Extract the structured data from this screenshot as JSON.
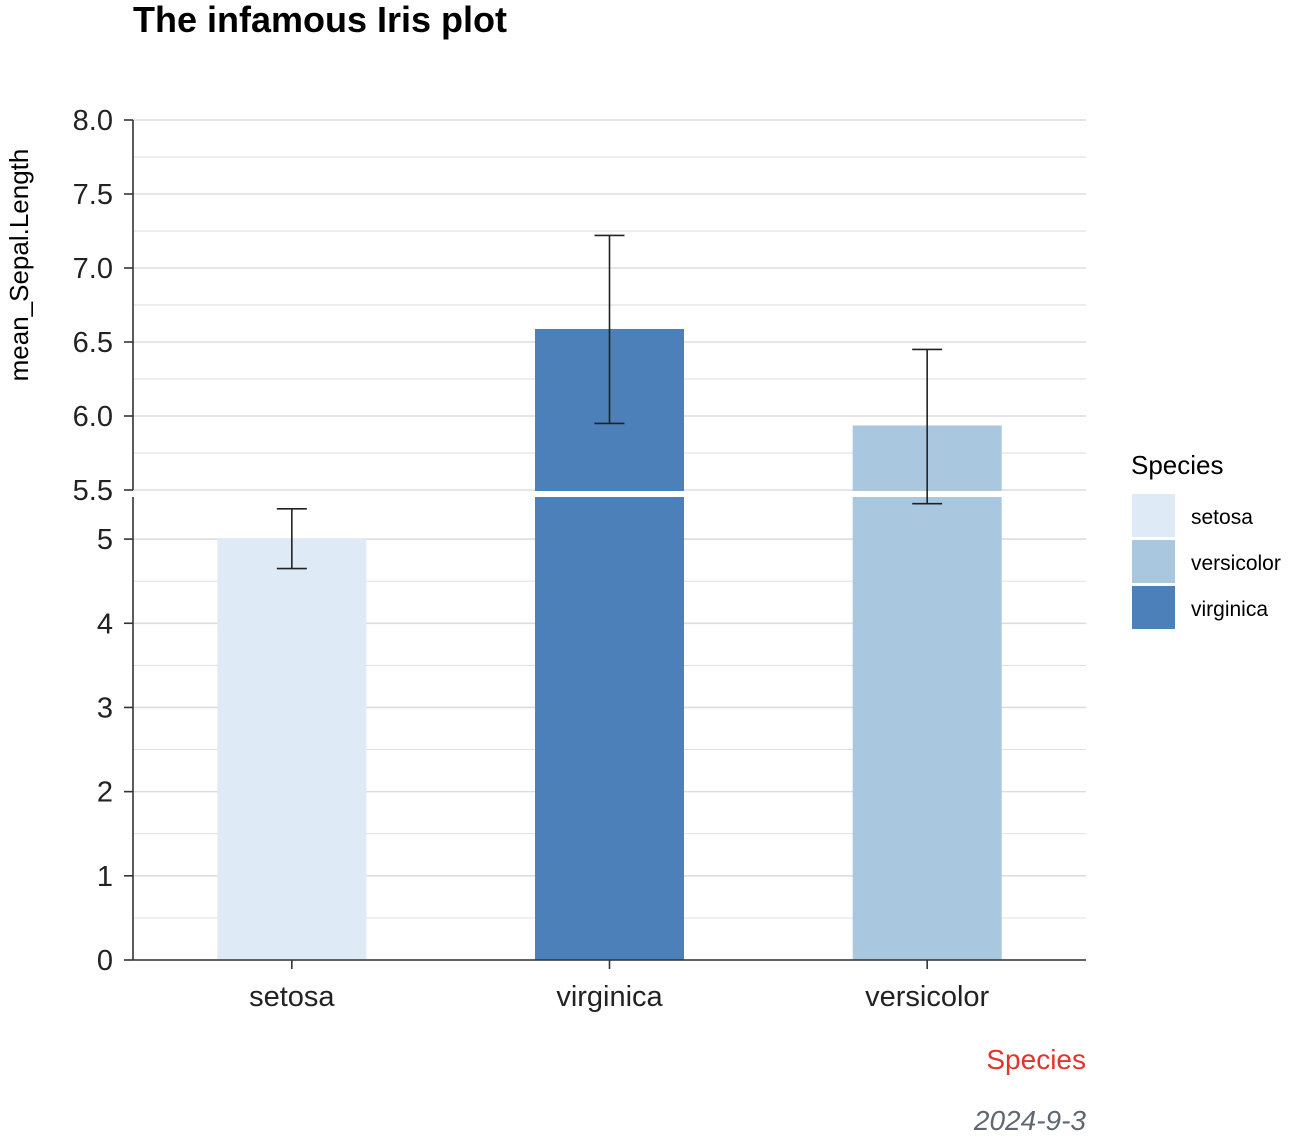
{
  "chart_data": {
    "type": "bar",
    "title": "The infamous Iris plot",
    "xlabel": "Species",
    "ylabel": "mean_Sepal.Length",
    "caption": "2024-9-3",
    "categories": [
      "setosa",
      "virginica",
      "versicolor"
    ],
    "values": [
      5.006,
      6.588,
      5.936
    ],
    "error_low": [
      4.65,
      5.95,
      5.42
    ],
    "error_high": [
      5.36,
      7.22,
      6.45
    ],
    "y_axis_break": {
      "lower_range": [
        0,
        5.5
      ],
      "upper_range": [
        5.5,
        8.0
      ],
      "lower_ticks": [
        "0",
        "1",
        "2",
        "3",
        "4",
        "5"
      ],
      "upper_ticks": [
        "5.5",
        "6.0",
        "6.5",
        "7.0",
        "7.5",
        "8.0"
      ]
    },
    "grid": true,
    "legend": {
      "title": "Species",
      "position": "right",
      "entries": [
        "setosa",
        "versicolor",
        "virginica"
      ]
    },
    "colors": {
      "setosa": "#deebf7",
      "versicolor": "#a9c8e0",
      "virginica": "#4b80b8",
      "xlabel": "#e0352b",
      "caption": "#5f6770",
      "grid": "#dcdde3",
      "axis": "#333333"
    }
  }
}
